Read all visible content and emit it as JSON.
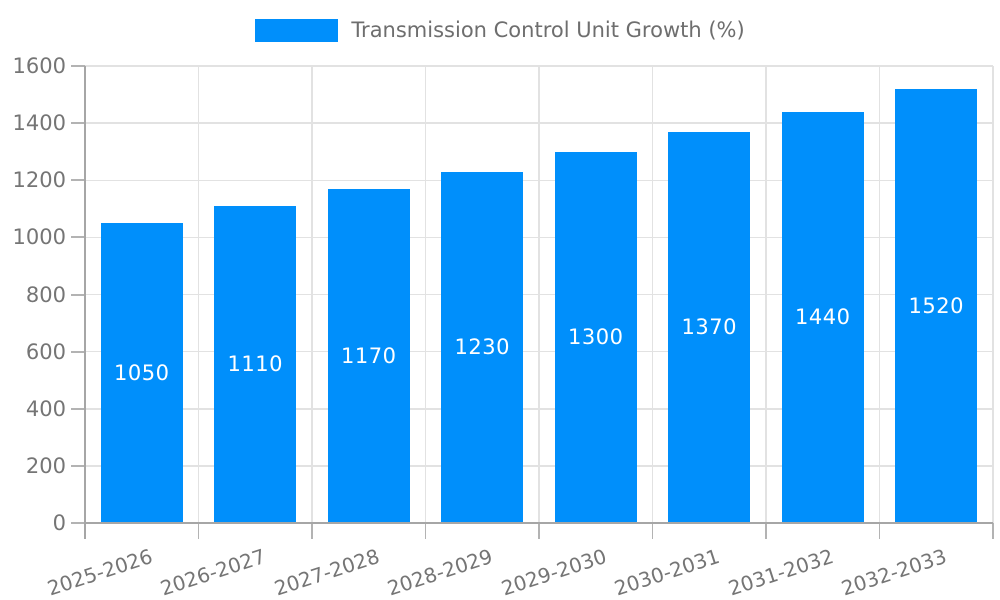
{
  "chart_data": {
    "type": "bar",
    "categories": [
      "2025-2026",
      "2026-2027",
      "2027-2028",
      "2028-2029",
      "2029-2030",
      "2030-2031",
      "2031-2032",
      "2032-2033"
    ],
    "series": [
      {
        "name": "Transmission Control Unit Growth (%)",
        "values": [
          1050,
          1110,
          1170,
          1230,
          1300,
          1370,
          1440,
          1520
        ]
      }
    ],
    "value_labels": [
      "1050",
      "1110",
      "1170",
      "1230",
      "1300",
      "1370",
      "1440",
      "1520"
    ],
    "ytick_labels": [
      "0",
      "200",
      "400",
      "600",
      "800",
      "1000",
      "1200",
      "1400",
      "1600"
    ],
    "ylim": [
      0,
      1600
    ],
    "ytick_step": 200,
    "grid": true,
    "legend_position": "top",
    "xlabel": "",
    "ylabel": "",
    "colors": {
      "bar": "#008FFB",
      "value_label_text": "#FFFFFF",
      "axis_text": "#757575",
      "legend_text": "#6E6E6E",
      "grid_line": "#E2E2E2",
      "axis_line": "#A6A6A6",
      "tick_mark": "#B3B3B3",
      "background": "#FFFFFF"
    }
  }
}
